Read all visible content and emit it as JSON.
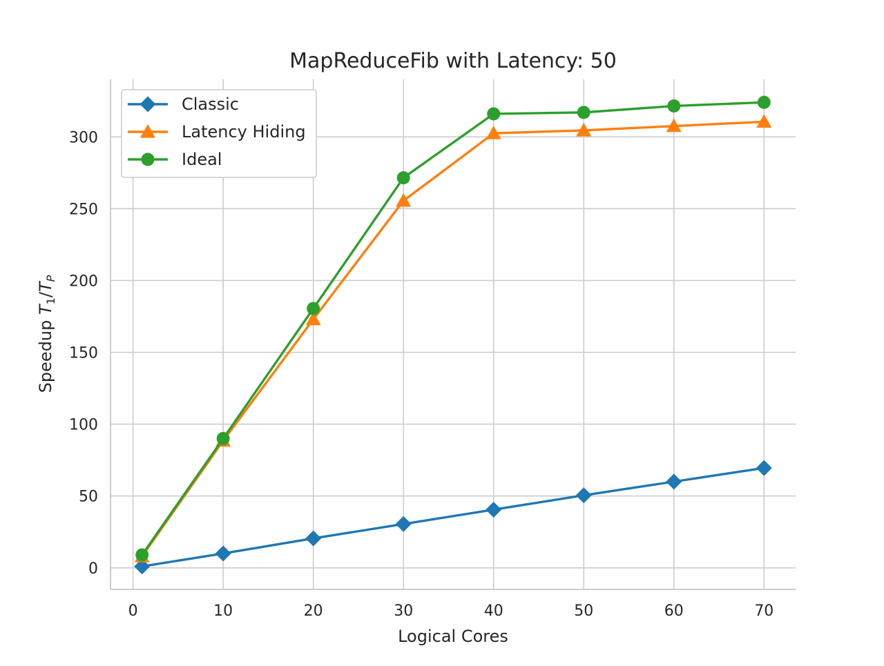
{
  "chart_data": {
    "type": "line",
    "title": "MapReduceFib with Latency: 50",
    "xlabel": "Logical Cores",
    "ylabel_prefix": "Speedup ",
    "ylabel_math": "T1/TP",
    "x": [
      1,
      10,
      20,
      30,
      40,
      50,
      60,
      70
    ],
    "xlim": [
      -2.5,
      73.5
    ],
    "ylim": [
      -15,
      340
    ],
    "xticks": [
      0,
      10,
      20,
      30,
      40,
      50,
      60,
      70
    ],
    "yticks": [
      0,
      50,
      100,
      150,
      200,
      250,
      300
    ],
    "grid": true,
    "legend_position": "top-left",
    "series": [
      {
        "name": "Classic",
        "color": "#1f77b4",
        "marker": "diamond",
        "values": [
          1,
          10,
          20.5,
          30.5,
          40.5,
          50.5,
          60,
          69.5
        ]
      },
      {
        "name": "Latency Hiding",
        "color": "#ff7f0e",
        "marker": "triangle",
        "values": [
          8,
          88.5,
          173,
          255.5,
          302.5,
          304.5,
          307.5,
          310.5
        ]
      },
      {
        "name": "Ideal",
        "color": "#2ca02c",
        "marker": "circle",
        "values": [
          9,
          90,
          180.5,
          271.5,
          316,
          317,
          321.5,
          324
        ]
      }
    ]
  }
}
